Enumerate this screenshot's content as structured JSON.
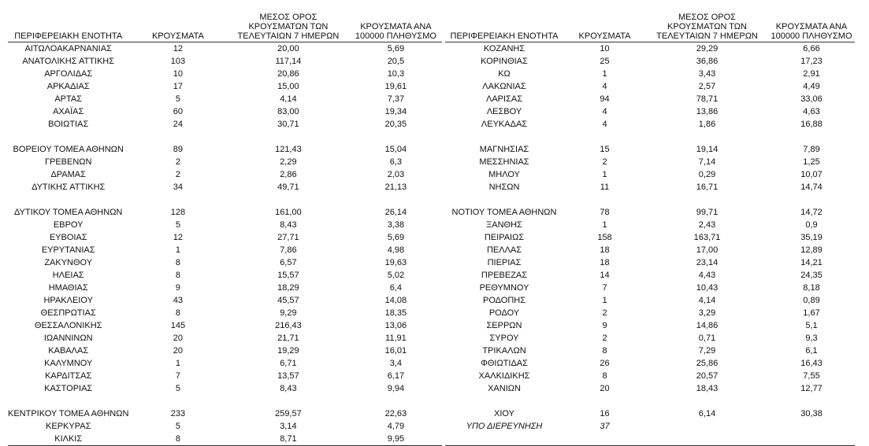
{
  "headers": {
    "region": "ΠΕΡΙΦΕΡΕΙΑΚΗ ΕΝΟΤΗΤΑ",
    "cases": "ΚΡΟΥΣΜΑΤΑ",
    "avg7_line1": "ΜΕΣΟΣ ΟΡΟΣ",
    "avg7_line2": "ΚΡΟΥΣΜΑΤΩΝ ΤΩΝ",
    "avg7_line3": "ΤΕΛΕΥΤΑΙΩΝ 7 ΗΜΕΡΩΝ",
    "per100k_line1": "ΚΡΟΥΣΜΑΤΑ ΑΝΑ",
    "per100k_line2": "100000 ΠΛΗΘΥΣΜΟ"
  },
  "left_rows": [
    [
      "ΑΙΤΩΛΟΑΚΑΡΝΑΝΙΑΣ",
      "12",
      "20,00",
      "5,69"
    ],
    [
      "ΑΝΑΤΟΛΙΚΗΣ ΑΤΤΙΚΗΣ",
      "103",
      "117,14",
      "20,5"
    ],
    [
      "ΑΡΓΟΛΙΔΑΣ",
      "10",
      "20,86",
      "10,3"
    ],
    [
      "ΑΡΚΑΔΙΑΣ",
      "17",
      "15,00",
      "19,61"
    ],
    [
      "ΑΡΤΑΣ",
      "5",
      "4,14",
      "7,37"
    ],
    [
      "ΑΧΑΪΑΣ",
      "60",
      "83,00",
      "19,34"
    ],
    [
      "ΒΟΙΩΤΙΑΣ",
      "24",
      "30,71",
      "20,35"
    ],
    null,
    [
      "ΒΟΡΕΙΟΥ ΤΟΜΕΑ ΑΘΗΝΩΝ",
      "89",
      "121,43",
      "15,04"
    ],
    [
      "ΓΡΕΒΕΝΩΝ",
      "2",
      "2,29",
      "6,3"
    ],
    [
      "ΔΡΑΜΑΣ",
      "2",
      "2,86",
      "2,03"
    ],
    [
      "ΔΥΤΙΚΗΣ ΑΤΤΙΚΗΣ",
      "34",
      "49,71",
      "21,13"
    ],
    null,
    [
      "ΔΥΤΙΚΟΥ ΤΟΜΕΑ ΑΘΗΝΩΝ",
      "128",
      "161,00",
      "26,14"
    ],
    [
      "ΕΒΡΟΥ",
      "5",
      "8,43",
      "3,38"
    ],
    [
      "ΕΥΒΟΙΑΣ",
      "12",
      "27,71",
      "5,69"
    ],
    [
      "ΕΥΡΥΤΑΝΙΑΣ",
      "1",
      "7,86",
      "4,98"
    ],
    [
      "ΖΑΚΥΝΘΟΥ",
      "8",
      "6,57",
      "19,63"
    ],
    [
      "ΗΛΕΙΑΣ",
      "8",
      "15,57",
      "5,02"
    ],
    [
      "ΗΜΑΘΙΑΣ",
      "9",
      "18,29",
      "6,4"
    ],
    [
      "ΗΡΑΚΛΕΙΟΥ",
      "43",
      "45,57",
      "14,08"
    ],
    [
      "ΘΕΣΠΡΩΤΙΑΣ",
      "8",
      "9,29",
      "18,35"
    ],
    [
      "ΘΕΣΣΑΛΟΝΙΚΗΣ",
      "145",
      "216,43",
      "13,06"
    ],
    [
      "ΙΩΑΝΝΙΝΩΝ",
      "20",
      "21,71",
      "11,91"
    ],
    [
      "ΚΑΒΑΛΑΣ",
      "20",
      "19,29",
      "16,01"
    ],
    [
      "ΚΑΛΥΜΝΟΥ",
      "1",
      "6,71",
      "3,4"
    ],
    [
      "ΚΑΡΔΙΤΣΑΣ",
      "7",
      "13,57",
      "6,17"
    ],
    [
      "ΚΑΣΤΟΡΙΑΣ",
      "5",
      "8,43",
      "9,94"
    ],
    null,
    [
      "ΚΕΝΤΡΙΚΟΥ ΤΟΜΕΑ ΑΘΗΝΩΝ",
      "233",
      "259,57",
      "22,63"
    ],
    [
      "ΚΕΡΚΥΡΑΣ",
      "5",
      "3,14",
      "4,79"
    ],
    [
      "ΚΙΛΚΙΣ",
      "8",
      "8,71",
      "9,95"
    ]
  ],
  "right_rows": [
    [
      "ΚΟΖΑΝΗΣ",
      "10",
      "29,29",
      "6,66"
    ],
    [
      "ΚΟΡΙΝΘΙΑΣ",
      "25",
      "36,86",
      "17,23"
    ],
    [
      "ΚΩ",
      "1",
      "3,43",
      "2,91"
    ],
    [
      "ΛΑΚΩΝΙΑΣ",
      "4",
      "2,57",
      "4,49"
    ],
    [
      "ΛΑΡΙΣΑΣ",
      "94",
      "78,71",
      "33,06"
    ],
    [
      "ΛΕΣΒΟΥ",
      "4",
      "13,86",
      "4,63"
    ],
    [
      "ΛΕΥΚΑΔΑΣ",
      "4",
      "1,86",
      "16,88"
    ],
    null,
    [
      "ΜΑΓΝΗΣΙΑΣ",
      "15",
      "19,14",
      "7,89"
    ],
    [
      "ΜΕΣΣΗΝΙΑΣ",
      "2",
      "7,14",
      "1,25"
    ],
    [
      "ΜΗΛΟΥ",
      "1",
      "0,29",
      "10,07"
    ],
    [
      "ΝΗΣΩΝ",
      "11",
      "16,71",
      "14,74"
    ],
    null,
    [
      "ΝΟΤΙΟΥ ΤΟΜΕΑ ΑΘΗΝΩΝ",
      "78",
      "99,71",
      "14,72"
    ],
    [
      "ΞΑΝΘΗΣ",
      "1",
      "2,43",
      "0,9"
    ],
    [
      "ΠΕΙΡΑΙΩΣ",
      "158",
      "163,71",
      "35,19"
    ],
    [
      "ΠΕΛΛΑΣ",
      "18",
      "17,00",
      "12,89"
    ],
    [
      "ΠΙΕΡΙΑΣ",
      "18",
      "23,14",
      "14,21"
    ],
    [
      "ΠΡΕΒΕΖΑΣ",
      "14",
      "4,43",
      "24,35"
    ],
    [
      "ΡΕΘΥΜΝΟΥ",
      "7",
      "10,43",
      "8,18"
    ],
    [
      "ΡΟΔΟΠΗΣ",
      "1",
      "4,14",
      "0,89"
    ],
    [
      "ΡΟΔΟΥ",
      "2",
      "3,29",
      "1,67"
    ],
    [
      "ΣΕΡΡΩΝ",
      "9",
      "14,86",
      "5,1"
    ],
    [
      "ΣΥΡΟΥ",
      "2",
      "0,71",
      "9,3"
    ],
    [
      "ΤΡΙΚΑΛΩΝ",
      "8",
      "7,29",
      "6,1"
    ],
    [
      "ΦΘΙΩΤΙΔΑΣ",
      "26",
      "25,86",
      "16,43"
    ],
    [
      "ΧΑΛΚΙΔΙΚΗΣ",
      "8",
      "20,57",
      "7,55"
    ],
    [
      "ΧΑΝΙΩΝ",
      "20",
      "18,43",
      "12,77"
    ],
    null,
    [
      "ΧΙΟΥ",
      "16",
      "6,14",
      "30,38"
    ],
    [
      "ΥΠΟ ΔΙΕΡΕΥΝΗΣΗ",
      "37",
      "",
      ""
    ],
    null
  ],
  "italic_rows": [
    "ΥΠΟ ΔΙΕΡΕΥΝΗΣΗ"
  ]
}
